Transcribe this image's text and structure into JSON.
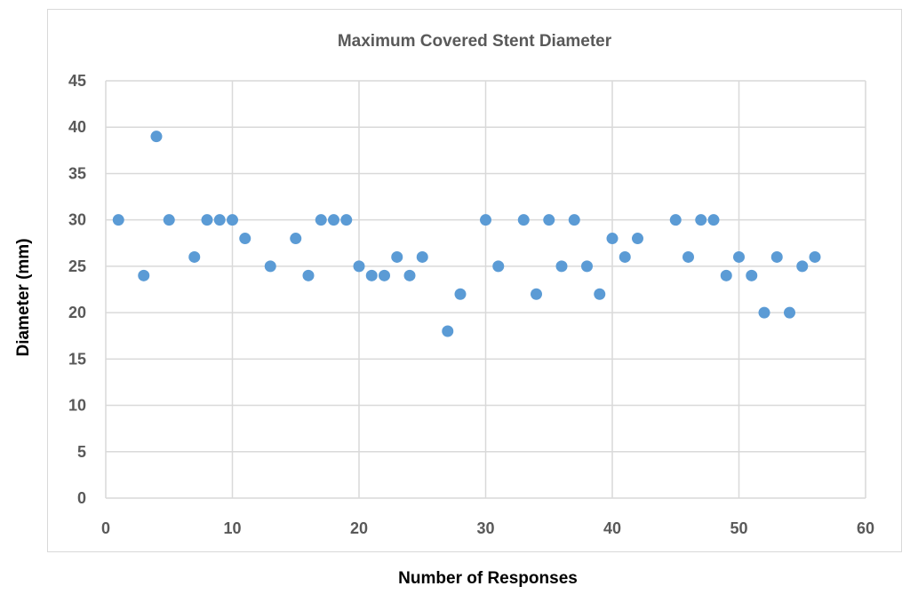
{
  "chart_data": {
    "type": "scatter",
    "title": "Maximum Covered Stent Diameter",
    "xlabel": "Number of Responses",
    "ylabel": "Diameter (mm)",
    "xlim": [
      0,
      60
    ],
    "ylim": [
      0,
      45
    ],
    "xticks": [
      "0",
      "10",
      "20",
      "30",
      "40",
      "50",
      "60"
    ],
    "yticks": [
      "0",
      "5",
      "10",
      "15",
      "20",
      "25",
      "30",
      "35",
      "40",
      "45"
    ],
    "grid": true,
    "legend": "none",
    "marker_color": "#5B9BD5",
    "series": [
      {
        "points": [
          [
            1,
            30
          ],
          [
            3,
            24
          ],
          [
            4,
            39
          ],
          [
            5,
            30
          ],
          [
            7,
            26
          ],
          [
            8,
            30
          ],
          [
            9,
            30
          ],
          [
            10,
            30
          ],
          [
            11,
            28
          ],
          [
            13,
            25
          ],
          [
            15,
            28
          ],
          [
            16,
            24
          ],
          [
            17,
            30
          ],
          [
            18,
            30
          ],
          [
            19,
            30
          ],
          [
            20,
            25
          ],
          [
            21,
            24
          ],
          [
            22,
            24
          ],
          [
            23,
            26
          ],
          [
            24,
            24
          ],
          [
            25,
            26
          ],
          [
            27,
            18
          ],
          [
            28,
            22
          ],
          [
            30,
            30
          ],
          [
            31,
            25
          ],
          [
            33,
            30
          ],
          [
            34,
            22
          ],
          [
            35,
            30
          ],
          [
            36,
            25
          ],
          [
            37,
            30
          ],
          [
            38,
            25
          ],
          [
            39,
            22
          ],
          [
            40,
            28
          ],
          [
            41,
            26
          ],
          [
            42,
            28
          ],
          [
            45,
            30
          ],
          [
            46,
            26
          ],
          [
            47,
            30
          ],
          [
            48,
            30
          ],
          [
            49,
            24
          ],
          [
            50,
            26
          ],
          [
            51,
            24
          ],
          [
            52,
            20
          ],
          [
            53,
            26
          ],
          [
            54,
            20
          ],
          [
            55,
            25
          ],
          [
            56,
            26
          ]
        ]
      }
    ]
  }
}
